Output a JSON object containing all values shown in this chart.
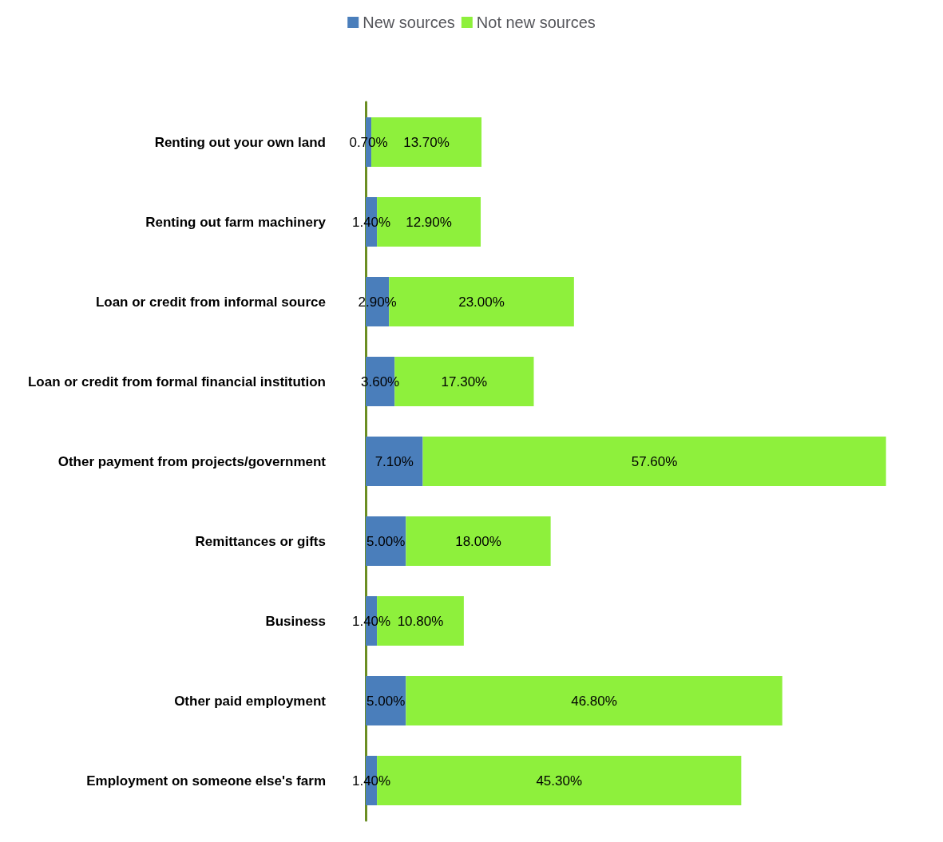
{
  "chart_data": {
    "type": "bar",
    "orientation": "horizontal",
    "stacked": true,
    "legend": "top",
    "categories": [
      "Renting out your own land",
      "Renting out farm machinery",
      "Loan or credit from informal source",
      "Loan or credit from formal financial institution",
      "Other payment from projects/government",
      "Remittances or gifts",
      "Business",
      "Other paid employment",
      "Employment on someone else's farm"
    ],
    "series": [
      {
        "name": "New sources",
        "color": "#4a7ebb",
        "values": [
          0.7,
          1.4,
          2.9,
          3.6,
          7.1,
          5.0,
          1.4,
          5.0,
          1.4
        ],
        "value_labels": [
          "0.70%",
          "1.40%",
          "2.90%",
          "3.60%",
          "7.10%",
          "5.00%",
          "1.40%",
          "5.00%",
          "1.40%"
        ]
      },
      {
        "name": "Not new sources",
        "color": "#8ef03c",
        "values": [
          13.7,
          12.9,
          23.0,
          17.3,
          57.6,
          18.0,
          10.8,
          46.8,
          45.3
        ],
        "value_labels": [
          "13.70%",
          "12.90%",
          "23.00%",
          "17.30%",
          "57.60%",
          "18.00%",
          "10.80%",
          "46.80%",
          "45.30%"
        ]
      }
    ]
  }
}
